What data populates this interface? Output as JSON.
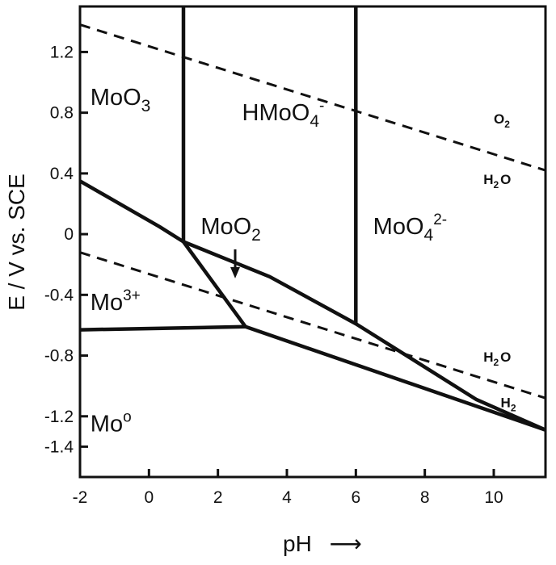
{
  "chart_data": {
    "type": "line",
    "xlabel": "pH",
    "ylabel": "E / V vs. SCE",
    "xlim": [
      -2,
      11.5
    ],
    "ylim": [
      -1.6,
      1.5
    ],
    "x_ticks": [
      "-2",
      "0",
      "2",
      "4",
      "6",
      "8",
      "10"
    ],
    "y_ticks": [
      "1.2",
      "0.8",
      "0.4",
      "0",
      "-0.4",
      "-0.8",
      "-1.2",
      "-1.4"
    ],
    "grid": false,
    "legend": "none",
    "boundaries": [
      {
        "style": "solid",
        "points": [
          [
            -2,
            0.35
          ],
          [
            0.3,
            0.05
          ],
          [
            1.0,
            -0.05
          ],
          [
            3.5,
            -0.28
          ],
          [
            6.0,
            -0.59
          ],
          [
            9.5,
            -1.09
          ],
          [
            11.5,
            -1.29
          ]
        ]
      },
      {
        "style": "solid",
        "points": [
          [
            1.0,
            -0.05
          ],
          [
            2.8,
            -0.61
          ],
          [
            11.5,
            -1.29
          ]
        ]
      },
      {
        "style": "solid",
        "points": [
          [
            -2,
            -0.63
          ],
          [
            2.8,
            -0.61
          ]
        ]
      },
      {
        "style": "solid",
        "points": [
          [
            1.0,
            1.5
          ],
          [
            1.0,
            -0.05
          ]
        ]
      },
      {
        "style": "solid",
        "points": [
          [
            6.0,
            1.5
          ],
          [
            6.0,
            -0.59
          ]
        ]
      },
      {
        "style": "dashed",
        "points": [
          [
            -2,
            1.38
          ],
          [
            11.5,
            0.42
          ]
        ]
      },
      {
        "style": "dashed",
        "points": [
          [
            -2,
            -0.12
          ],
          [
            11.5,
            -1.08
          ]
        ]
      }
    ],
    "arrow": {
      "from": [
        2.5,
        -0.1
      ],
      "to": [
        2.5,
        -0.27
      ]
    },
    "regions": [
      {
        "label": "MoO",
        "sub": "3",
        "sup": "",
        "x": -1.7,
        "y": 0.85
      },
      {
        "label": "HMoO",
        "sub": "4",
        "sup": "-",
        "x": 2.7,
        "y": 0.75
      },
      {
        "label": "MoO",
        "sub": "2",
        "sup": "",
        "x": 1.5,
        "y": 0.0
      },
      {
        "label": "MoO",
        "sub": "4",
        "sup": "2-",
        "x": 6.5,
        "y": 0.0
      },
      {
        "label": "Mo",
        "sub": "",
        "sup": "3+",
        "x": -1.7,
        "y": -0.5
      },
      {
        "label": "Mo",
        "sub": "",
        "sup": "o",
        "x": -1.7,
        "y": -1.3
      }
    ],
    "annotations": [
      {
        "label": "O",
        "sub": "2",
        "x": 10.0,
        "y": 0.73
      },
      {
        "label": "H",
        "sub": "2",
        "tail": "O",
        "x": 9.7,
        "y": 0.33
      },
      {
        "label": "H",
        "sub": "2",
        "tail": "O",
        "x": 9.7,
        "y": -0.84
      },
      {
        "label": "H",
        "sub": "2",
        "tail": "",
        "x": 10.2,
        "y": -1.14
      }
    ]
  },
  "axis_arrow": "⟶"
}
